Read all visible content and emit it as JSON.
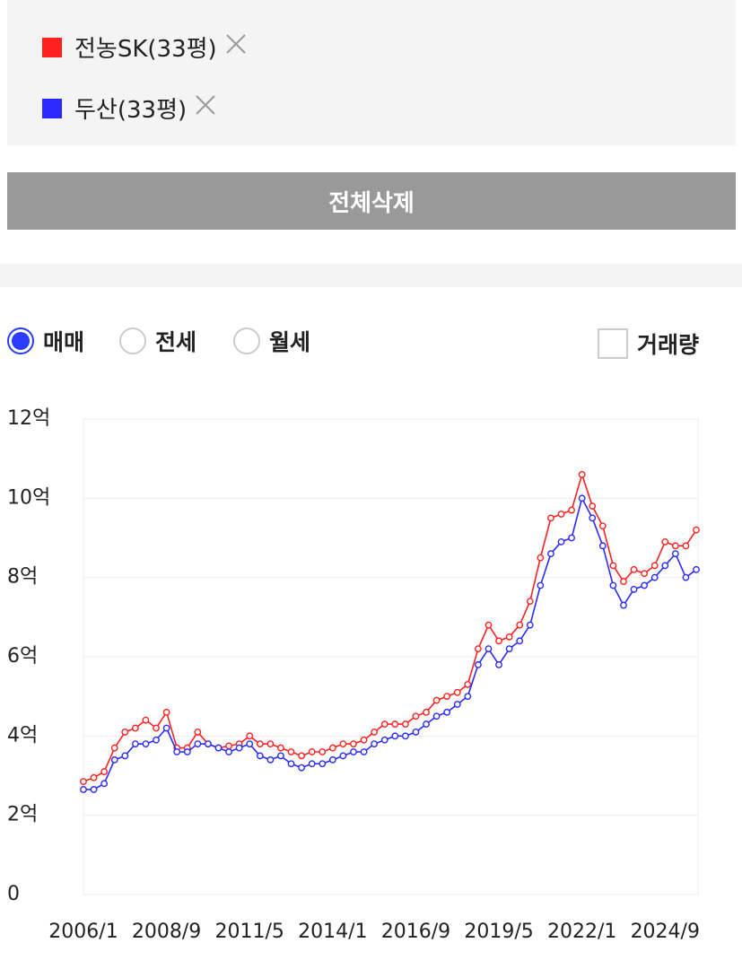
{
  "chart_data": {
    "type": "line",
    "x": [
      "2006/1",
      "2006/5",
      "2006/9",
      "2007/1",
      "2007/5",
      "2007/9",
      "2008/1",
      "2008/5",
      "2008/9",
      "2009/1",
      "2009/5",
      "2009/9",
      "2010/1",
      "2010/5",
      "2010/9",
      "2011/1",
      "2011/5",
      "2011/9",
      "2012/1",
      "2012/5",
      "2012/9",
      "2013/1",
      "2013/5",
      "2013/9",
      "2014/1",
      "2014/5",
      "2014/9",
      "2015/1",
      "2015/5",
      "2015/9",
      "2016/1",
      "2016/5",
      "2016/9",
      "2017/1",
      "2017/5",
      "2017/9",
      "2018/1",
      "2018/5",
      "2018/9",
      "2019/1",
      "2019/5",
      "2019/9",
      "2020/1",
      "2020/5",
      "2020/9",
      "2021/1",
      "2021/5",
      "2021/9",
      "2022/1",
      "2022/5",
      "2022/9",
      "2023/1",
      "2023/5",
      "2023/9",
      "2024/1",
      "2024/5",
      "2024/9",
      "2025/1",
      "2025/5",
      "2025/9"
    ],
    "series": [
      {
        "name": "전농SK(33평)",
        "color": "#ff2020",
        "values": [
          2.85,
          2.95,
          3.1,
          3.7,
          4.1,
          4.2,
          4.4,
          4.2,
          4.6,
          3.7,
          3.7,
          4.1,
          3.8,
          3.7,
          3.75,
          3.8,
          4.0,
          3.8,
          3.8,
          3.7,
          3.6,
          3.5,
          3.6,
          3.6,
          3.7,
          3.8,
          3.8,
          3.9,
          4.1,
          4.3,
          4.3,
          4.3,
          4.5,
          4.6,
          4.9,
          5.0,
          5.1,
          5.3,
          6.2,
          6.8,
          6.4,
          6.5,
          6.8,
          7.4,
          8.5,
          9.5,
          9.6,
          9.7,
          10.6,
          9.8,
          9.3,
          8.3,
          7.9,
          8.2,
          8.1,
          8.3,
          8.9,
          8.8,
          8.8,
          9.2
        ]
      },
      {
        "name": "두산(33평)",
        "color": "#2a2aff",
        "values": [
          2.65,
          2.65,
          2.8,
          3.4,
          3.5,
          3.8,
          3.8,
          3.9,
          4.2,
          3.6,
          3.6,
          3.8,
          3.8,
          3.7,
          3.6,
          3.7,
          3.8,
          3.5,
          3.4,
          3.5,
          3.3,
          3.2,
          3.3,
          3.3,
          3.4,
          3.5,
          3.6,
          3.6,
          3.8,
          3.9,
          4.0,
          4.0,
          4.1,
          4.3,
          4.5,
          4.6,
          4.8,
          5.0,
          5.8,
          6.2,
          5.8,
          6.2,
          6.4,
          6.8,
          7.8,
          8.6,
          8.9,
          9.0,
          10.0,
          9.5,
          8.8,
          7.8,
          7.3,
          7.7,
          7.8,
          8.0,
          8.3,
          8.6,
          8.0,
          8.2
        ]
      }
    ],
    "xlim": [
      "2006/1",
      "2025/9"
    ],
    "xticks": [
      "2006/1",
      "2008/9",
      "2011/5",
      "2014/1",
      "2016/9",
      "2019/5",
      "2022/1",
      "2024/9"
    ],
    "ylim": [
      0,
      12
    ],
    "yticks": [
      0,
      {
        "value": 2,
        "label": "2억"
      },
      {
        "value": 4,
        "label": "4억"
      },
      {
        "value": 6,
        "label": "6억"
      },
      {
        "value": 8,
        "label": "8억"
      },
      {
        "value": 10,
        "label": "10억"
      },
      {
        "value": 12,
        "label": "12억"
      }
    ],
    "grid": true
  },
  "controls": {
    "clear_button": "전체삭제",
    "radios": [
      {
        "label": "매매",
        "checked": true
      },
      {
        "label": "전세",
        "checked": false
      },
      {
        "label": "월세",
        "checked": false
      }
    ],
    "checkbox": {
      "label": "거래량",
      "checked": false
    }
  }
}
